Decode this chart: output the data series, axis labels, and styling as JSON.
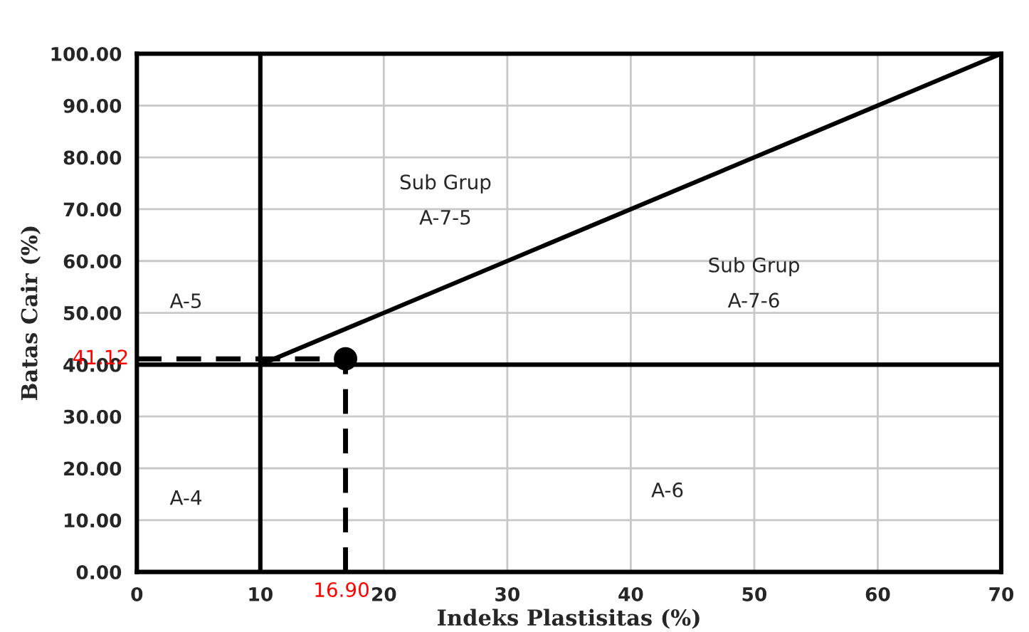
{
  "chart_data": {
    "type": "line",
    "xlabel": "Indeks Plastisitas (%)",
    "ylabel": "Batas Cair (%)",
    "xlim": [
      0,
      70
    ],
    "xticks": [
      0,
      10,
      20,
      30,
      40,
      50,
      60,
      70
    ],
    "ylim": [
      0,
      100
    ],
    "yticks": [
      {
        "value": 0,
        "label": "0.00"
      },
      {
        "value": 10,
        "label": "10.00"
      },
      {
        "value": 20,
        "label": "20.00"
      },
      {
        "value": 30,
        "label": "30.00"
      },
      {
        "value": 40,
        "label": "40.00"
      },
      {
        "value": 50,
        "label": "50.00"
      },
      {
        "value": 60,
        "label": "60.00"
      },
      {
        "value": 70,
        "label": "70.00"
      },
      {
        "value": 80,
        "label": "80.00"
      },
      {
        "value": 90,
        "label": "90.00"
      },
      {
        "value": 100,
        "label": "100.00"
      }
    ],
    "grid": true,
    "series": [
      {
        "type": "line",
        "color": "#000000",
        "line_style": "solid",
        "x": [
          10,
          10
        ],
        "values": [
          0,
          100
        ]
      },
      {
        "type": "line",
        "color": "#000000",
        "line_style": "solid",
        "x": [
          0,
          70
        ],
        "values": [
          40,
          40
        ]
      },
      {
        "type": "line",
        "color": "#000000",
        "line_style": "solid",
        "x": [
          10,
          70
        ],
        "values": [
          40,
          100
        ]
      },
      {
        "type": "line",
        "color": "#000000",
        "line_style": "dashed",
        "x": [
          0,
          16.9
        ],
        "values": [
          41.12,
          41.12
        ]
      },
      {
        "type": "line",
        "color": "#000000",
        "line_style": "dashed",
        "x": [
          16.9,
          16.9
        ],
        "values": [
          0,
          41.12
        ]
      },
      {
        "type": "scatter",
        "color": "#000000",
        "marker": "circle",
        "x": [
          16.9
        ],
        "values": [
          41.12
        ]
      }
    ],
    "annotations": [
      {
        "text": "41.12",
        "x": 0,
        "y": 41.12
      },
      {
        "text": "16.90",
        "x": 16.9,
        "y": 0
      },
      "A-5",
      "A-4",
      "Sub Grup\n\nA-7-5",
      "Sub Grup\n\nA-7-6",
      "A-6"
    ]
  }
}
